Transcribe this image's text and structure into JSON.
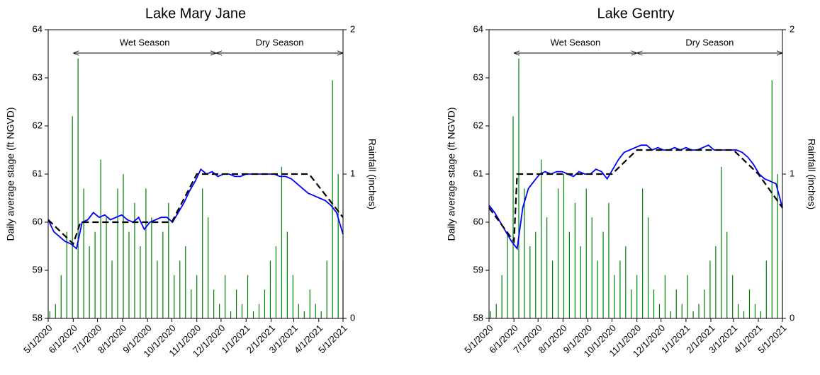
{
  "chart_data": [
    {
      "type": "line",
      "title": "Lake Mary Jane",
      "ylabel": "Daily average stage (ft NGVD)",
      "y2label": "Rainfall (inches)",
      "xlim": [
        "5/1/2020",
        "5/1/2021"
      ],
      "xticks": [
        "5/1/2020",
        "6/1/2020",
        "7/1/2020",
        "8/1/2020",
        "9/1/2020",
        "10/1/2020",
        "11/1/2020",
        "12/1/2020",
        "1/1/2021",
        "2/1/2021",
        "3/1/2021",
        "4/1/2021",
        "5/1/2021"
      ],
      "ylim": [
        58,
        64
      ],
      "yticks": [
        58,
        59,
        60,
        61,
        62,
        63,
        64
      ],
      "y2lim": [
        0,
        2
      ],
      "y2ticks": [
        0,
        1,
        2
      ],
      "annotations": [
        {
          "text": "Wet Season",
          "start": "6/1/2020",
          "end": "11/25/2020"
        },
        {
          "text": "Dry Season",
          "start": "11/25/2020",
          "end": "5/1/2021"
        }
      ],
      "series": [
        {
          "type": "bar",
          "axis": "y2",
          "color": "#008000",
          "x": [
            "5/3/2020",
            "5/10/2020",
            "5/17/2020",
            "5/24/2020",
            "5/31/2020",
            "6/7/2020",
            "6/14/2020",
            "6/21/2020",
            "6/28/2020",
            "7/5/2020",
            "7/12/2020",
            "7/19/2020",
            "7/26/2020",
            "8/2/2020",
            "8/9/2020",
            "8/16/2020",
            "8/23/2020",
            "8/30/2020",
            "9/6/2020",
            "9/13/2020",
            "9/20/2020",
            "9/27/2020",
            "10/4/2020",
            "10/11/2020",
            "10/18/2020",
            "10/25/2020",
            "11/1/2020",
            "11/8/2020",
            "11/15/2020",
            "11/22/2020",
            "11/29/2020",
            "12/6/2020",
            "12/13/2020",
            "12/20/2020",
            "12/27/2020",
            "1/3/2021",
            "1/10/2021",
            "1/17/2021",
            "1/24/2021",
            "1/31/2021",
            "2/7/2021",
            "2/14/2021",
            "2/21/2021",
            "2/28/2021",
            "3/7/2021",
            "3/14/2021",
            "3/21/2021",
            "3/28/2021",
            "4/4/2021",
            "4/11/2021",
            "4/18/2021",
            "4/25/2021",
            "5/1/2021"
          ],
          "values": [
            0.05,
            0.1,
            0.3,
            0.6,
            1.4,
            1.8,
            0.9,
            0.5,
            0.6,
            1.1,
            0.7,
            0.4,
            0.9,
            1.0,
            0.6,
            0.8,
            0.5,
            0.9,
            0.7,
            0.4,
            0.6,
            0.8,
            0.3,
            0.4,
            0.5,
            0.2,
            0.3,
            0.9,
            0.7,
            0.2,
            0.1,
            0.3,
            0.05,
            0.2,
            0.1,
            0.3,
            0.05,
            0.1,
            0.2,
            0.4,
            0.5,
            1.05,
            0.6,
            0.3,
            0.1,
            0.05,
            0.2,
            0.1,
            0.05,
            0.4,
            1.65,
            1.0,
            0.4
          ]
        },
        {
          "type": "line",
          "color": "#0000ff",
          "x": [
            "5/1/2020",
            "5/8/2020",
            "5/15/2020",
            "5/22/2020",
            "5/29/2020",
            "6/5/2020",
            "6/12/2020",
            "6/19/2020",
            "6/26/2020",
            "7/3/2020",
            "7/10/2020",
            "7/17/2020",
            "7/24/2020",
            "7/31/2020",
            "8/7/2020",
            "8/14/2020",
            "8/21/2020",
            "8/28/2020",
            "9/4/2020",
            "9/11/2020",
            "9/18/2020",
            "9/25/2020",
            "10/2/2020",
            "10/9/2020",
            "10/16/2020",
            "10/23/2020",
            "10/30/2020",
            "11/6/2020",
            "11/13/2020",
            "11/20/2020",
            "11/27/2020",
            "12/4/2020",
            "12/11/2020",
            "12/18/2020",
            "12/25/2020",
            "1/1/2021",
            "1/8/2021",
            "1/15/2021",
            "1/22/2021",
            "1/29/2021",
            "2/5/2021",
            "2/12/2021",
            "2/19/2021",
            "2/26/2021",
            "3/5/2021",
            "3/12/2021",
            "3/19/2021",
            "3/26/2021",
            "4/2/2021",
            "4/9/2021",
            "4/16/2021",
            "4/23/2021",
            "5/1/2021"
          ],
          "values": [
            60.05,
            59.8,
            59.7,
            59.6,
            59.55,
            59.45,
            60.0,
            60.05,
            60.2,
            60.1,
            60.15,
            60.05,
            60.1,
            60.15,
            60.05,
            60.0,
            60.1,
            59.85,
            60.0,
            60.05,
            60.1,
            60.1,
            60.0,
            60.2,
            60.4,
            60.65,
            60.85,
            61.1,
            61.0,
            61.05,
            60.95,
            61.0,
            61.0,
            60.95,
            60.95,
            61.0,
            61.0,
            61.0,
            61.0,
            61.0,
            61.0,
            60.95,
            60.95,
            60.9,
            60.8,
            60.7,
            60.6,
            60.55,
            60.5,
            60.45,
            60.35,
            60.2,
            59.75
          ]
        },
        {
          "type": "line",
          "color": "#000000",
          "dash": true,
          "x": [
            "5/1/2020",
            "6/1/2020",
            "6/10/2020",
            "10/1/2020",
            "11/1/2020",
            "3/20/2021",
            "5/1/2021"
          ],
          "values": [
            60.05,
            59.55,
            60.0,
            60.0,
            61.0,
            61.0,
            60.1
          ]
        }
      ]
    },
    {
      "type": "line",
      "title": "Lake Gentry",
      "ylabel": "Daily average stage (ft NGVD)",
      "y2label": "Rainfall (inches)",
      "xlim": [
        "5/1/2020",
        "5/1/2021"
      ],
      "xticks": [
        "5/1/2020",
        "6/1/2020",
        "7/1/2020",
        "8/1/2020",
        "9/1/2020",
        "10/1/2020",
        "11/1/2020",
        "12/1/2020",
        "1/1/2021",
        "2/1/2021",
        "3/1/2021",
        "4/1/2021",
        "5/1/2021"
      ],
      "ylim": [
        58,
        64
      ],
      "yticks": [
        58,
        59,
        60,
        61,
        62,
        63,
        64
      ],
      "y2lim": [
        0,
        2
      ],
      "y2ticks": [
        0,
        1,
        2
      ],
      "annotations": [
        {
          "text": "Wet Season",
          "start": "6/1/2020",
          "end": "11/1/2020"
        },
        {
          "text": "Dry Season",
          "start": "11/1/2020",
          "end": "5/1/2021"
        }
      ],
      "series": [
        {
          "type": "bar",
          "axis": "y2",
          "color": "#008000",
          "x": [
            "5/3/2020",
            "5/10/2020",
            "5/17/2020",
            "5/24/2020",
            "5/31/2020",
            "6/7/2020",
            "6/14/2020",
            "6/21/2020",
            "6/28/2020",
            "7/5/2020",
            "7/12/2020",
            "7/19/2020",
            "7/26/2020",
            "8/2/2020",
            "8/9/2020",
            "8/16/2020",
            "8/23/2020",
            "8/30/2020",
            "9/6/2020",
            "9/13/2020",
            "9/20/2020",
            "9/27/2020",
            "10/4/2020",
            "10/11/2020",
            "10/18/2020",
            "10/25/2020",
            "11/1/2020",
            "11/8/2020",
            "11/15/2020",
            "11/22/2020",
            "11/29/2020",
            "12/6/2020",
            "12/13/2020",
            "12/20/2020",
            "12/27/2020",
            "1/3/2021",
            "1/10/2021",
            "1/17/2021",
            "1/24/2021",
            "1/31/2021",
            "2/7/2021",
            "2/14/2021",
            "2/21/2021",
            "2/28/2021",
            "3/7/2021",
            "3/14/2021",
            "3/21/2021",
            "3/28/2021",
            "4/4/2021",
            "4/11/2021",
            "4/18/2021",
            "4/25/2021",
            "5/1/2021"
          ],
          "values": [
            0.05,
            0.1,
            0.3,
            0.6,
            1.4,
            1.8,
            0.9,
            0.5,
            0.6,
            1.1,
            0.7,
            0.4,
            0.9,
            1.0,
            0.6,
            0.8,
            0.5,
            0.9,
            0.7,
            0.4,
            0.6,
            0.8,
            0.3,
            0.4,
            0.5,
            0.2,
            0.3,
            0.9,
            0.7,
            0.2,
            0.1,
            0.3,
            0.05,
            0.2,
            0.1,
            0.3,
            0.05,
            0.1,
            0.2,
            0.4,
            0.5,
            1.05,
            0.6,
            0.3,
            0.1,
            0.05,
            0.2,
            0.1,
            0.05,
            0.4,
            1.65,
            1.0,
            0.4
          ]
        },
        {
          "type": "line",
          "color": "#0000ff",
          "x": [
            "5/1/2020",
            "5/8/2020",
            "5/15/2020",
            "5/22/2020",
            "5/29/2020",
            "6/5/2020",
            "6/12/2020",
            "6/19/2020",
            "6/26/2020",
            "7/3/2020",
            "7/10/2020",
            "7/17/2020",
            "7/24/2020",
            "7/31/2020",
            "8/7/2020",
            "8/14/2020",
            "8/21/2020",
            "8/28/2020",
            "9/4/2020",
            "9/11/2020",
            "9/18/2020",
            "9/25/2020",
            "10/2/2020",
            "10/9/2020",
            "10/16/2020",
            "10/23/2020",
            "10/30/2020",
            "11/6/2020",
            "11/13/2020",
            "11/20/2020",
            "11/27/2020",
            "12/4/2020",
            "12/11/2020",
            "12/18/2020",
            "12/25/2020",
            "1/1/2021",
            "1/8/2021",
            "1/15/2021",
            "1/22/2021",
            "1/29/2021",
            "2/5/2021",
            "2/12/2021",
            "2/19/2021",
            "2/26/2021",
            "3/5/2021",
            "3/12/2021",
            "3/19/2021",
            "3/26/2021",
            "4/2/2021",
            "4/9/2021",
            "4/16/2021",
            "4/23/2021",
            "5/1/2021"
          ],
          "values": [
            60.35,
            60.2,
            60.0,
            59.8,
            59.6,
            59.45,
            60.3,
            60.7,
            60.85,
            61.0,
            61.05,
            61.0,
            61.05,
            61.05,
            61.0,
            60.95,
            61.05,
            61.0,
            61.0,
            61.1,
            61.05,
            60.9,
            61.1,
            61.3,
            61.45,
            61.5,
            61.55,
            61.6,
            61.6,
            61.5,
            61.55,
            61.5,
            61.5,
            61.55,
            61.5,
            61.55,
            61.5,
            61.5,
            61.55,
            61.6,
            61.5,
            61.5,
            61.5,
            61.5,
            61.5,
            61.45,
            61.35,
            61.2,
            61.0,
            60.9,
            60.85,
            60.8,
            60.3
          ]
        },
        {
          "type": "line",
          "color": "#000000",
          "dash": true,
          "x": [
            "5/1/2020",
            "6/1/2020",
            "6/5/2020",
            "10/1/2020",
            "11/1/2020",
            "3/1/2021",
            "4/1/2021",
            "5/1/2021"
          ],
          "values": [
            60.3,
            59.6,
            61.0,
            61.0,
            61.5,
            61.5,
            61.0,
            60.3
          ]
        }
      ]
    }
  ]
}
